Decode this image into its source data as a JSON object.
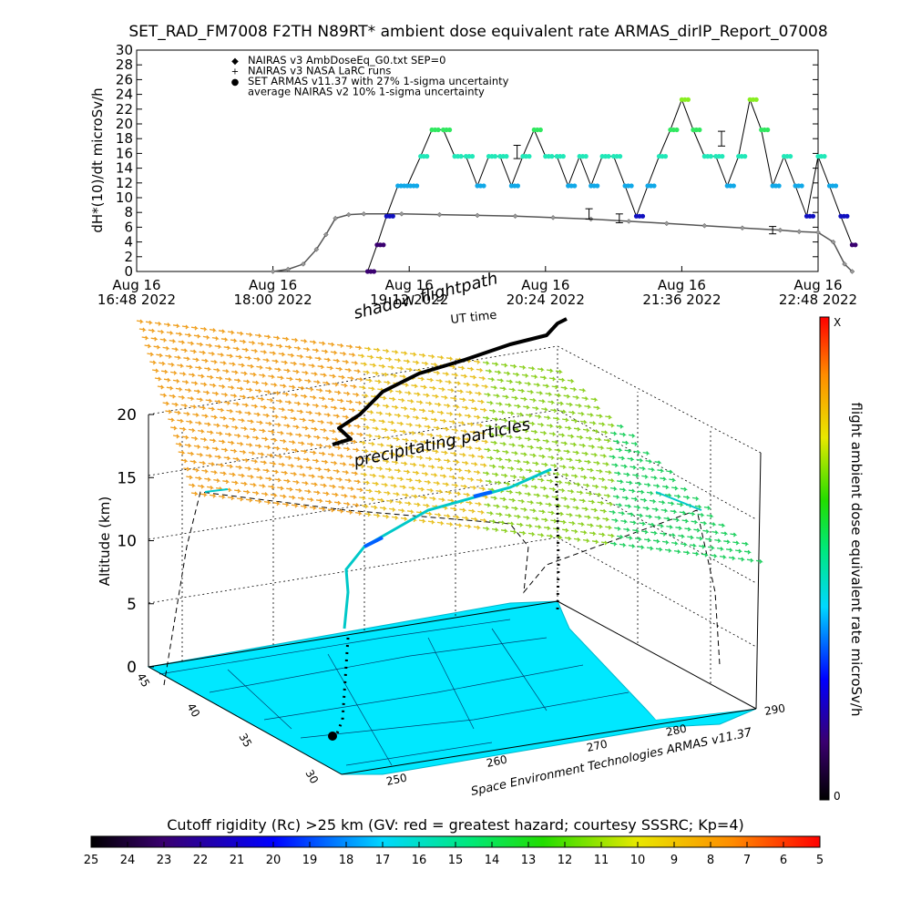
{
  "header": {
    "title": "SET_RAD_FM7008  F2TH N89RT* ambient dose equivalent rate ARMAS_dirIP_Report_07008"
  },
  "colors": {
    "nairas_v3_marker": "#9a9a9a",
    "set_armas_marker": "#1010c0",
    "land": "#00e8ff",
    "flightpath": "#000000"
  },
  "chart_data": [
    {
      "type": "line",
      "title": "",
      "ylabel": "dH*(10)/dt microSv/h",
      "xlabel": "",
      "ylim": [
        0,
        30
      ],
      "yticks": [
        0,
        2,
        4,
        6,
        8,
        10,
        12,
        14,
        16,
        18,
        20,
        22,
        24,
        26,
        28,
        30
      ],
      "xlim": [
        "2022-08-16 16:48",
        "2022-08-16 22:48"
      ],
      "xticks": [
        {
          "day": "Aug 16",
          "time": "16:48 2022"
        },
        {
          "day": "Aug 16",
          "time": "18:00 2022"
        },
        {
          "day": "Aug 16",
          "time": "19:12 2022"
        },
        {
          "day": "Aug 16",
          "time": "20:24 2022"
        },
        {
          "day": "Aug 16",
          "time": "21:36 2022"
        },
        {
          "day": "Aug 16",
          "time": "22:48 2022"
        }
      ],
      "legend": [
        {
          "symbol": "◆",
          "label": "NAIRAS v3 AmbDoseEq_G0.txt SEP=0"
        },
        {
          "symbol": "+",
          "label": "NAIRAS v3 NASA LaRC runs"
        },
        {
          "symbol": "●",
          "label": "SET ARMAS v11.37 with 27% 1-sigma uncertainty"
        },
        {
          "symbol": "",
          "label": "average NAIRAS v2 10% 1-sigma uncertainty"
        }
      ],
      "legend_position": "top-left",
      "series": [
        {
          "name": "NAIRAS v3 AmbDoseEq_G0.txt SEP=0",
          "x_minutes_from_1648": [
            72,
            80,
            88,
            95,
            100,
            105,
            112,
            120,
            140,
            160,
            180,
            200,
            220,
            240,
            260,
            280,
            300,
            320,
            340,
            350,
            360,
            368,
            374,
            378
          ],
          "values": [
            0,
            0.3,
            1.0,
            3.0,
            5.0,
            7.2,
            7.7,
            7.8,
            7.8,
            7.7,
            7.6,
            7.5,
            7.3,
            7.1,
            6.8,
            6.5,
            6.2,
            5.9,
            5.6,
            5.4,
            5.3,
            4.0,
            1.0,
            0
          ]
        },
        {
          "name": "NAIRAS v3 NASA LaRC runs",
          "error_bars": [
            {
              "x": 201,
              "value": 16.2,
              "err": 0.9
            },
            {
              "x": 239,
              "value": 7.8,
              "err": 0.7
            },
            {
              "x": 255,
              "value": 7.2,
              "err": 0.6
            },
            {
              "x": 309,
              "value": 18.0,
              "err": 1.0
            },
            {
              "x": 336,
              "value": 5.6,
              "err": 0.5
            }
          ]
        },
        {
          "name": "SET ARMAS v11.37 with 27% 1-sigma uncertainty",
          "x_minutes_from_1648": [
            122,
            127,
            132,
            138,
            143,
            150,
            156,
            162,
            168,
            174,
            180,
            186,
            192,
            198,
            204,
            210,
            216,
            222,
            228,
            234,
            240,
            246,
            252,
            258,
            264,
            270,
            276,
            282,
            288,
            294,
            300,
            306,
            312,
            318,
            324,
            330,
            336,
            342,
            348,
            354,
            360,
            366,
            372,
            378
          ],
          "values": [
            0,
            3.6,
            7.5,
            11.6,
            11.6,
            15.6,
            19.2,
            19.2,
            15.6,
            15.6,
            11.6,
            15.6,
            15.6,
            11.6,
            15.6,
            19.2,
            15.6,
            15.6,
            11.6,
            15.6,
            11.6,
            15.6,
            15.6,
            11.6,
            7.5,
            11.6,
            15.6,
            19.2,
            23.3,
            19.2,
            15.6,
            15.6,
            11.6,
            15.6,
            23.3,
            19.2,
            11.6,
            15.6,
            11.6,
            7.5,
            15.6,
            11.6,
            7.5,
            3.6
          ]
        }
      ]
    },
    {
      "type": "scatter",
      "title": "shadow flightpath",
      "view": "3d-perspective",
      "zlabel": "Altitude (km)",
      "zticks": [
        0,
        5,
        10,
        15,
        20
      ],
      "lat_ticks": [
        "45",
        "40",
        "35",
        "30"
      ],
      "lon_ticks_front": [
        "250",
        "260",
        "270",
        "280"
      ],
      "lon_tick_right": "290",
      "subtitle_center": "UT time",
      "annotations": [
        "precipitating particles",
        "Space Environment Technologies ARMAS v11.37"
      ],
      "colorbar": {
        "label": "flight ambient dose equivalent rate microSv/h",
        "top_label": "X",
        "bottom_label": "0",
        "orientation": "vertical",
        "position": "right"
      }
    },
    {
      "type": "heatmap",
      "title": "Cutoff rigidity (Rc) >25 km (GV: red = greatest hazard; courtesy SSSRC; Kp=4)",
      "colorbar_ticks": [
        25,
        24,
        23,
        22,
        21,
        20,
        19,
        18,
        17,
        16,
        15,
        14,
        13,
        12,
        11,
        10,
        9,
        8,
        7,
        6,
        5
      ],
      "orientation": "horizontal",
      "position": "bottom"
    }
  ]
}
